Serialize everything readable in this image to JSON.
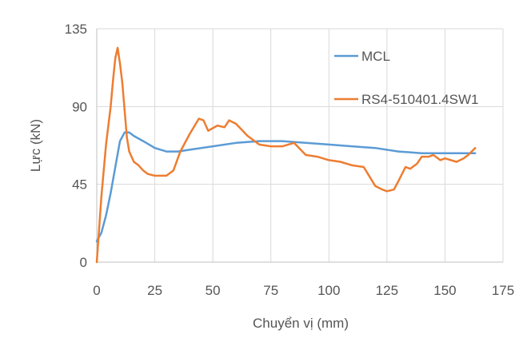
{
  "chart_data": {
    "type": "line",
    "title": "",
    "xlabel": "Chuyển vị (mm)",
    "ylabel": "Lực (kN)",
    "xlim": [
      0,
      175
    ],
    "ylim": [
      0,
      135
    ],
    "xticks": [
      0,
      25,
      50,
      75,
      100,
      125,
      150,
      175
    ],
    "yticks": [
      0,
      45,
      90,
      135
    ],
    "grid": "vertical and horizontal",
    "legend": "top-right",
    "series": [
      {
        "name": "MCL",
        "color": "#5B9BD5",
        "x": [
          0,
          2,
          4,
          6,
          8,
          10,
          12,
          14,
          16,
          20,
          25,
          30,
          35,
          40,
          50,
          60,
          70,
          80,
          90,
          100,
          110,
          120,
          130,
          140,
          150,
          160,
          163
        ],
        "y": [
          12,
          17,
          27,
          40,
          55,
          70,
          75,
          75,
          73,
          70,
          66,
          64,
          64,
          65,
          67,
          69,
          70,
          70,
          69,
          68,
          67,
          66,
          64,
          63,
          63,
          63,
          63
        ]
      },
      {
        "name": "RS4-510401.4SW1",
        "color": "#ED7D31",
        "x": [
          0,
          2,
          4,
          6,
          7,
          8,
          9,
          10,
          11,
          12,
          13,
          14,
          16,
          18,
          20,
          22,
          25,
          30,
          33,
          36,
          40,
          44,
          46,
          48,
          52,
          55,
          57,
          60,
          65,
          70,
          75,
          80,
          85,
          90,
          95,
          100,
          105,
          110,
          115,
          120,
          123,
          125,
          128,
          130,
          133,
          135,
          138,
          140,
          143,
          145,
          148,
          150,
          155,
          158,
          160,
          163
        ],
        "y": [
          0,
          38,
          68,
          90,
          105,
          118,
          124,
          115,
          104,
          88,
          72,
          64,
          58,
          56,
          53,
          51,
          50,
          50,
          53,
          64,
          74,
          83,
          82,
          76,
          79,
          78,
          82,
          80,
          73,
          68,
          67,
          67,
          69,
          62,
          61,
          59,
          58,
          56,
          55,
          44,
          42,
          41,
          42,
          47,
          55,
          54,
          57,
          61,
          61,
          62,
          59,
          60,
          58,
          60,
          62,
          66
        ]
      }
    ]
  }
}
